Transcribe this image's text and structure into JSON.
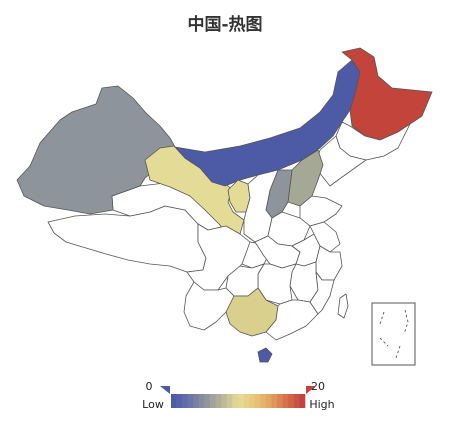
{
  "title": "中国-热图",
  "legend": {
    "min_label": "0",
    "max_label": "20",
    "low_label": "Low",
    "high_label": "High",
    "min": 0,
    "max": 20,
    "color_stops": [
      "#4d5aa5",
      "#6a74a8",
      "#8e949c",
      "#b8b49a",
      "#e4dc96",
      "#e9c77a",
      "#e2a462",
      "#d4704b",
      "#c2443a"
    ]
  },
  "colors": {
    "default_fill": "#ffffff",
    "border": "#555555",
    "blue": "#4d5aa5",
    "gray": "#8e949c",
    "gray_light": "#a5a894",
    "yellow": "#e4dc96",
    "olive_yellow": "#d9d08d",
    "red": "#c2443a"
  },
  "regions": [
    {
      "id": "xinjiang",
      "fill": "gray"
    },
    {
      "id": "tibet",
      "fill": "default_fill"
    },
    {
      "id": "qinghai",
      "fill": "default_fill"
    },
    {
      "id": "gansu",
      "fill": "yellow"
    },
    {
      "id": "ningxia",
      "fill": "yellow"
    },
    {
      "id": "inner-mongolia",
      "fill": "blue"
    },
    {
      "id": "heilongjiang",
      "fill": "red"
    },
    {
      "id": "jilin",
      "fill": "default_fill"
    },
    {
      "id": "liaoning",
      "fill": "default_fill"
    },
    {
      "id": "shanxi",
      "fill": "gray"
    },
    {
      "id": "hebei",
      "fill": "gray_light"
    },
    {
      "id": "shaanxi",
      "fill": "default_fill"
    },
    {
      "id": "shandong",
      "fill": "default_fill"
    },
    {
      "id": "henan",
      "fill": "default_fill"
    },
    {
      "id": "sichuan",
      "fill": "default_fill"
    },
    {
      "id": "chongqing",
      "fill": "default_fill"
    },
    {
      "id": "hubei",
      "fill": "default_fill"
    },
    {
      "id": "anhui",
      "fill": "default_fill"
    },
    {
      "id": "jiangsu",
      "fill": "default_fill"
    },
    {
      "id": "zhejiang",
      "fill": "default_fill"
    },
    {
      "id": "jiangxi",
      "fill": "default_fill"
    },
    {
      "id": "hunan",
      "fill": "default_fill"
    },
    {
      "id": "guizhou",
      "fill": "default_fill"
    },
    {
      "id": "yunnan",
      "fill": "default_fill"
    },
    {
      "id": "guangxi",
      "fill": "olive_yellow"
    },
    {
      "id": "guangdong",
      "fill": "default_fill"
    },
    {
      "id": "fujian",
      "fill": "default_fill"
    },
    {
      "id": "taiwan",
      "fill": "default_fill"
    },
    {
      "id": "hainan",
      "fill": "blue"
    }
  ]
}
